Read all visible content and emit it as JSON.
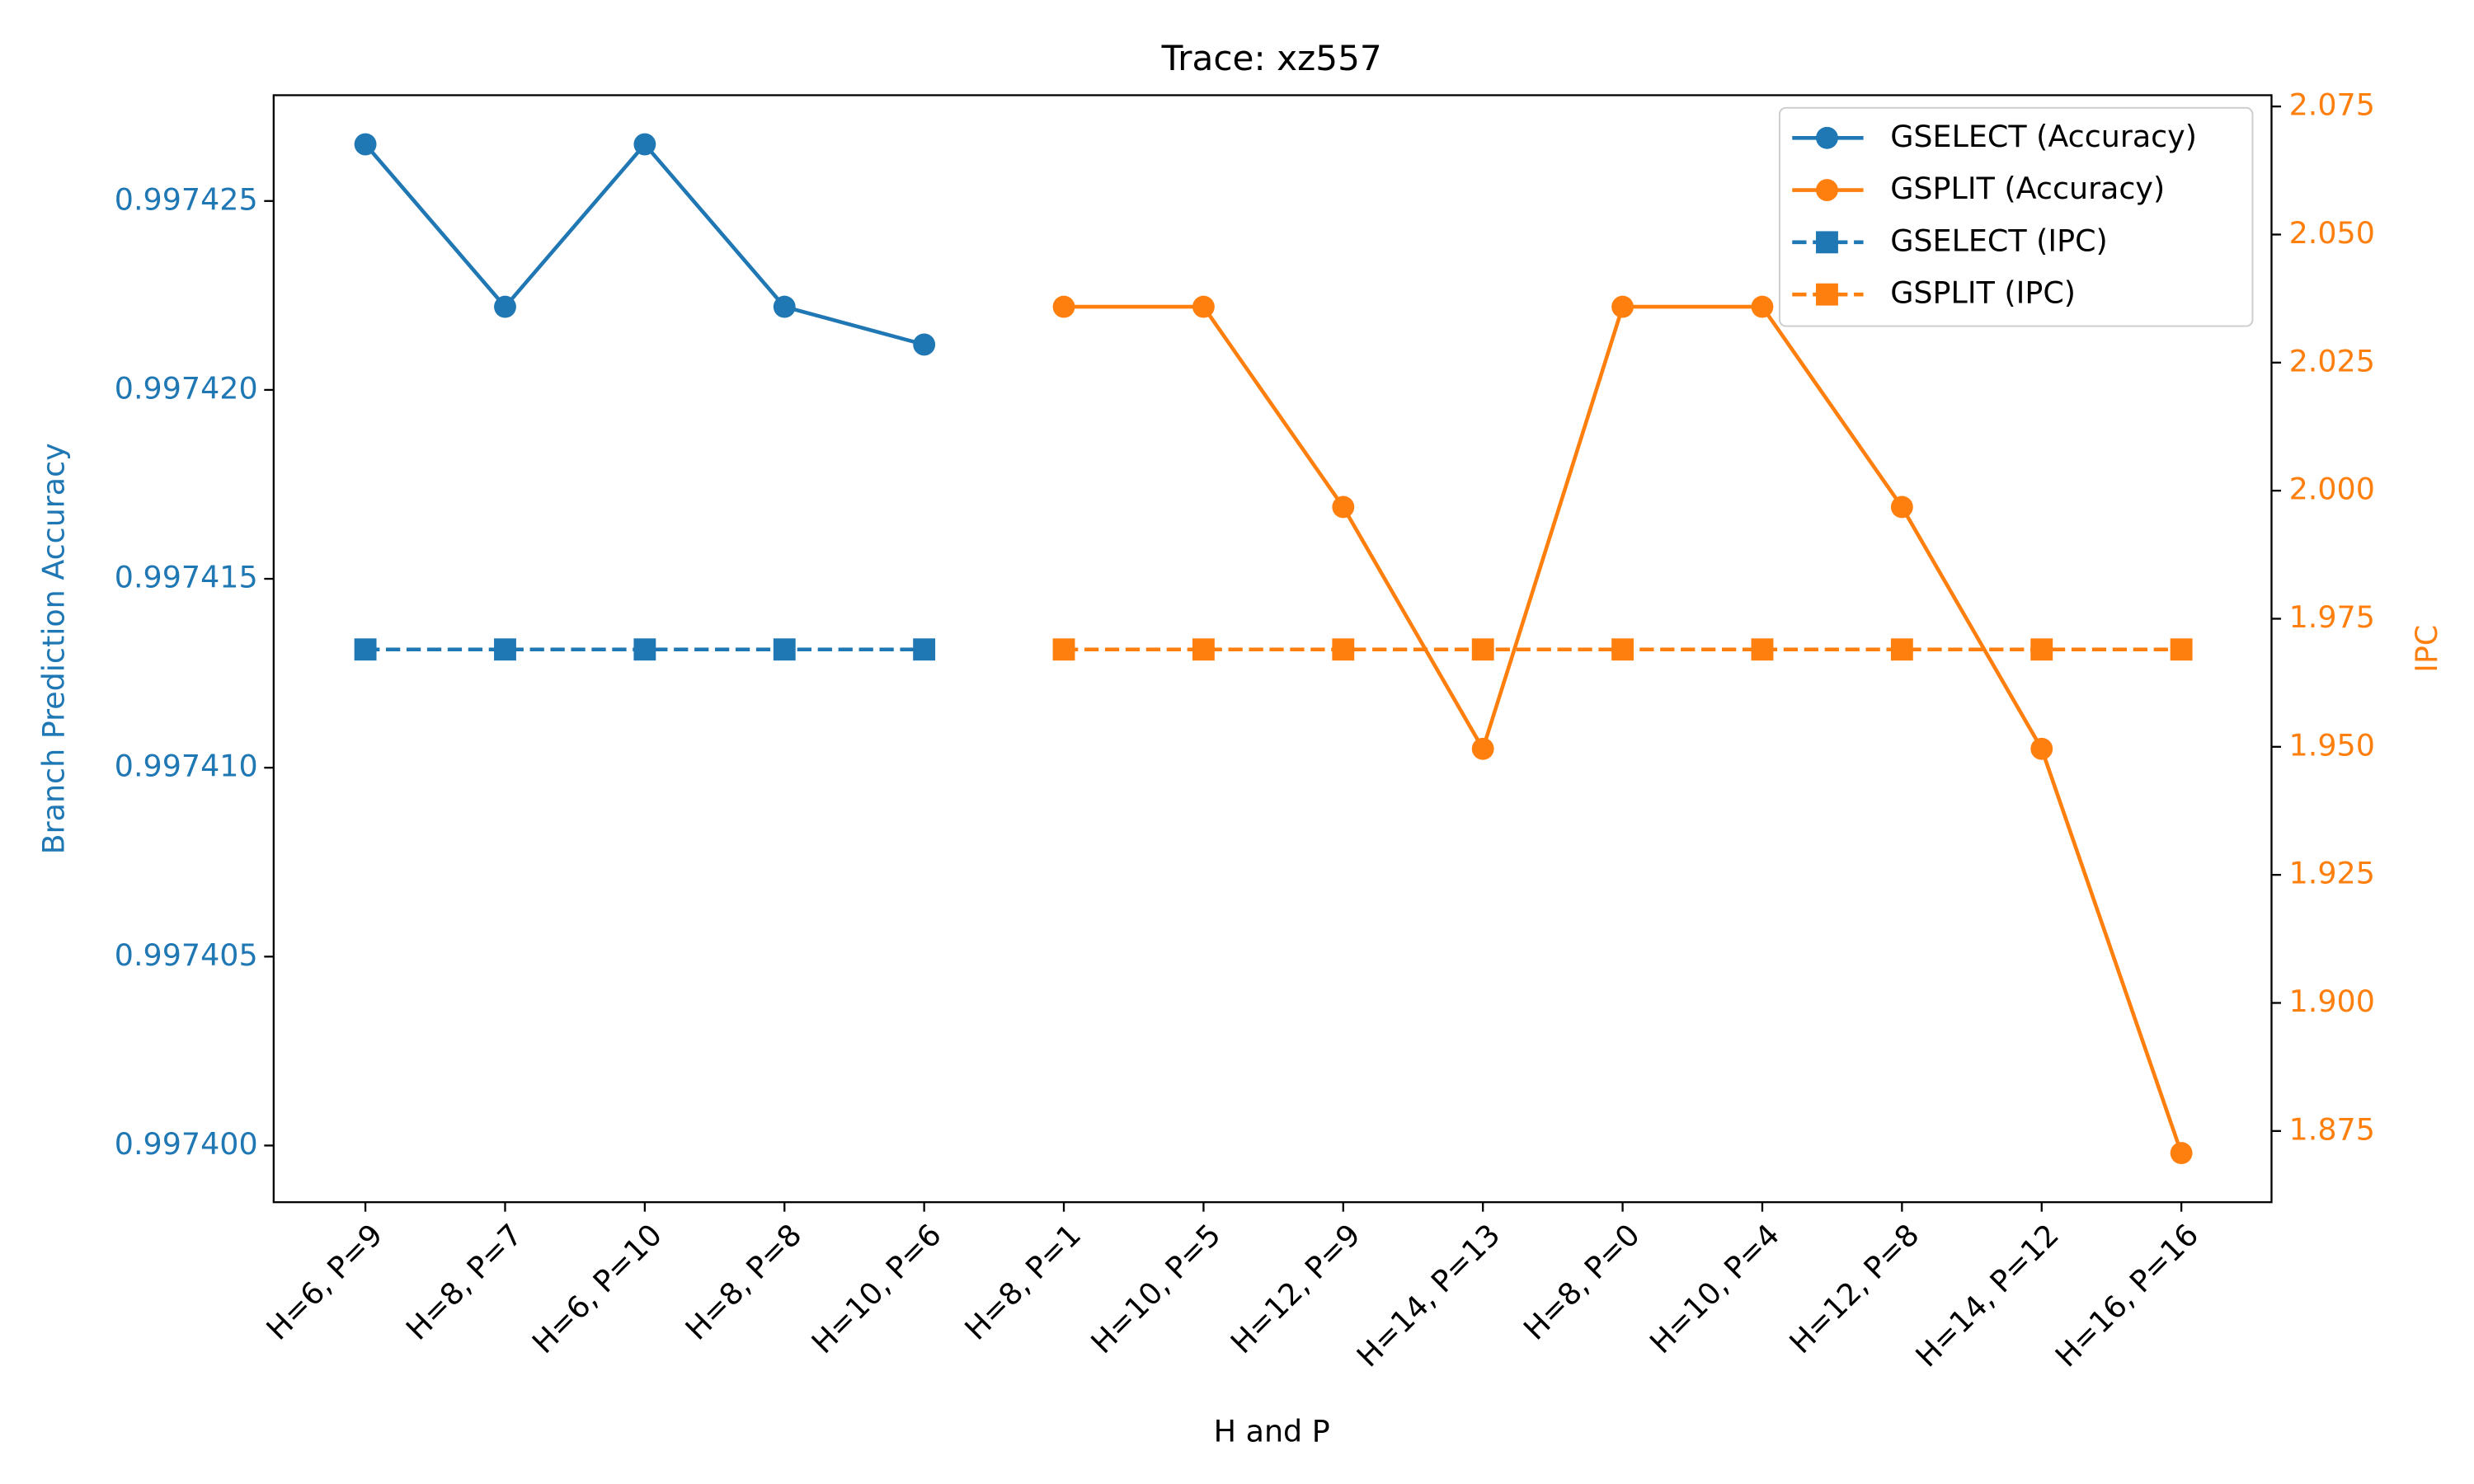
{
  "chart_data": {
    "type": "line",
    "title": "Trace: xz557",
    "xlabel": "H and P",
    "ylabel": "Branch Prediction Accuracy",
    "y2label": "IPC",
    "categories": [
      "H=6, P=9",
      "H=8, P=7",
      "H=6, P=10",
      "H=8, P=8",
      "H=10, P=6",
      "H=8, P=1",
      "H=10, P=5",
      "H=12, P=9",
      "H=14, P=13",
      "H=8, P=0",
      "H=10, P=4",
      "H=12, P=8",
      "H=14, P=12",
      "H=16, P=16"
    ],
    "series": [
      {
        "name": "GSELECT (Accuracy)",
        "color": "#1f77b4",
        "marker": "circle",
        "linestyle": "solid",
        "axis": "y",
        "values": [
          0.9974265,
          0.9974222,
          0.9974265,
          0.9974222,
          0.9974212,
          null,
          null,
          null,
          null,
          null,
          null,
          null,
          null,
          null
        ]
      },
      {
        "name": "GSPLIT (Accuracy)",
        "color": "#ff7f0e",
        "marker": "circle",
        "linestyle": "solid",
        "axis": "y",
        "values": [
          null,
          null,
          null,
          null,
          null,
          0.9974222,
          0.9974222,
          0.9974169,
          0.9974105,
          0.9974222,
          0.9974222,
          0.9974169,
          0.9974105,
          0.9973998
        ]
      },
      {
        "name": "GSELECT (IPC)",
        "color": "#1f77b4",
        "marker": "square",
        "linestyle": "dashed",
        "axis": "y2",
        "values": [
          1.969,
          1.969,
          1.969,
          1.969,
          1.969,
          null,
          null,
          null,
          null,
          null,
          null,
          null,
          null,
          null
        ]
      },
      {
        "name": "GSPLIT (IPC)",
        "color": "#ff7f0e",
        "marker": "square",
        "linestyle": "dashed",
        "axis": "y2",
        "values": [
          null,
          null,
          null,
          null,
          null,
          1.969,
          1.969,
          1.969,
          1.969,
          1.969,
          1.969,
          1.969,
          1.969,
          1.969
        ]
      }
    ],
    "ylim": [
      0.9973985,
      0.9974278
    ],
    "yticks": [
      {
        "value": 0.9974,
        "label": "0.997400"
      },
      {
        "value": 0.997405,
        "label": "0.997405"
      },
      {
        "value": 0.99741,
        "label": "0.997410"
      },
      {
        "value": 0.997415,
        "label": "0.997415"
      },
      {
        "value": 0.99742,
        "label": "0.997420"
      },
      {
        "value": 0.997425,
        "label": "0.997425"
      }
    ],
    "y2lim": [
      1.8611,
      2.0772
    ],
    "y2ticks": [
      {
        "value": 1.875,
        "label": "1.875"
      },
      {
        "value": 1.9,
        "label": "1.900"
      },
      {
        "value": 1.925,
        "label": "1.925"
      },
      {
        "value": 1.95,
        "label": "1.950"
      },
      {
        "value": 1.975,
        "label": "1.975"
      },
      {
        "value": 2.0,
        "label": "2.000"
      },
      {
        "value": 2.025,
        "label": "2.025"
      },
      {
        "value": 2.05,
        "label": "2.050"
      },
      {
        "value": 2.075,
        "label": "2.075"
      }
    ],
    "ycolor": "#1f77b4",
    "y2color": "#ff7f0e",
    "grid": false,
    "legend": "upper right"
  }
}
